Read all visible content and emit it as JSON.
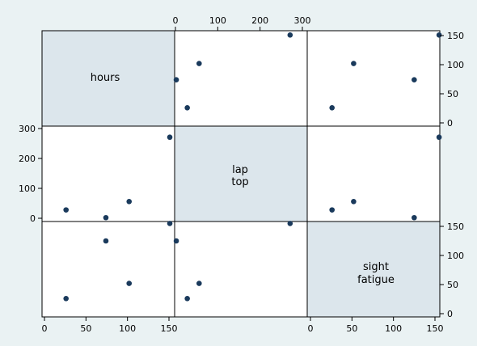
{
  "chart_data": {
    "type": "scatter",
    "kind": "scatter-matrix",
    "variables": [
      {
        "key": "hours",
        "label_lines": [
          "hours"
        ],
        "range": [
          0,
          155
        ],
        "ticks": [
          0,
          50,
          100,
          150
        ]
      },
      {
        "key": "laptop",
        "label_lines": [
          "lap",
          "top"
        ],
        "range": [
          0,
          300
        ],
        "ticks": [
          0,
          100,
          200,
          300
        ]
      },
      {
        "key": "sight_fatigue",
        "label_lines": [
          "sight",
          "fatigue"
        ],
        "range": [
          0,
          155
        ],
        "ticks": [
          0,
          50,
          100,
          150
        ]
      }
    ],
    "observations": [
      {
        "hours": 26,
        "laptop": 28,
        "sight_fatigue": 26
      },
      {
        "hours": 74,
        "laptop": 2,
        "sight_fatigue": 125
      },
      {
        "hours": 102,
        "laptop": 56,
        "sight_fatigue": 52
      },
      {
        "hours": 151,
        "laptop": 271,
        "sight_fatigue": 155
      }
    ],
    "colors": {
      "background": "#eaf2f3",
      "diagonal": "#dce6ec",
      "cell": "#ffffff",
      "marker": "#1a3a5c"
    },
    "grid": false,
    "legend": "none"
  }
}
